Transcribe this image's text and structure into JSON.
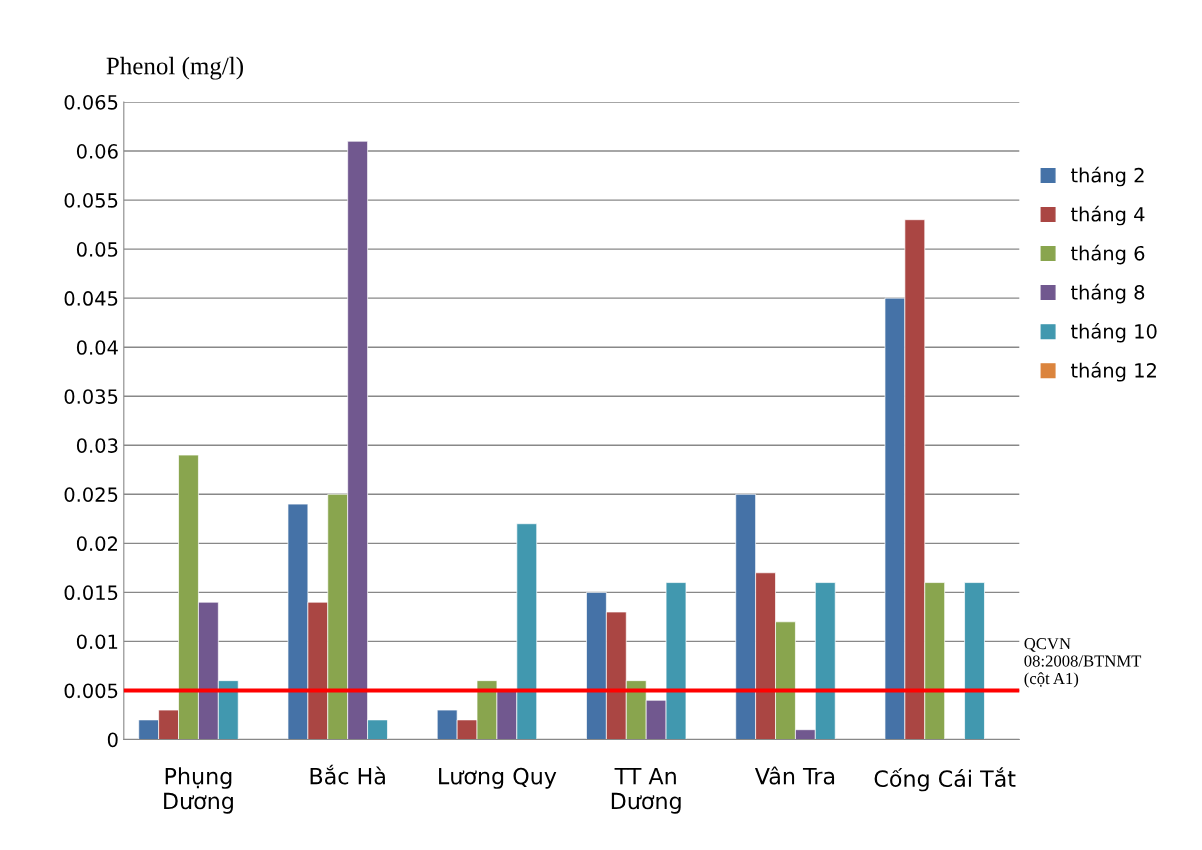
{
  "chart_data": {
    "type": "bar",
    "ylabel": "Phenol (mg/l)",
    "categories": [
      "Phụng\nDương",
      "Bắc Hà",
      "Lương Quy",
      "TT An\nDương",
      "Vân Tra",
      "Cống Cái Tắt"
    ],
    "series": [
      {
        "name": "tháng 2",
        "color": "#4572a7",
        "values": [
          0.002,
          0.024,
          0.003,
          0.015,
          0.025,
          0.045
        ]
      },
      {
        "name": "tháng 4",
        "color": "#aa4643",
        "values": [
          0.003,
          0.014,
          0.002,
          0.013,
          0.017,
          0.053
        ]
      },
      {
        "name": "tháng 6",
        "color": "#89a54e",
        "values": [
          0.029,
          0.025,
          0.006,
          0.006,
          0.012,
          0.016
        ]
      },
      {
        "name": "tháng 8",
        "color": "#71588f",
        "values": [
          0.014,
          0.061,
          0.005,
          0.004,
          0.001,
          null
        ]
      },
      {
        "name": "tháng 10",
        "color": "#4198af",
        "values": [
          0.006,
          0.002,
          0.022,
          0.016,
          0.016,
          0.016
        ]
      },
      {
        "name": "tháng 12",
        "color": "#db843d",
        "values": [
          null,
          null,
          null,
          null,
          null,
          null
        ]
      }
    ],
    "ylim": [
      0,
      0.065
    ],
    "yticks": [
      0,
      0.005,
      0.01,
      0.015,
      0.02,
      0.025,
      0.03,
      0.035,
      0.04,
      0.045,
      0.05,
      0.055,
      0.06,
      0.065
    ],
    "grid": "y",
    "legend": "right",
    "ref_lines": [
      {
        "axis": "y",
        "value": 0.005,
        "label": "QCVN\n08:2008/BTNMT\n(cột A1)",
        "color": "#ff0000"
      }
    ]
  }
}
